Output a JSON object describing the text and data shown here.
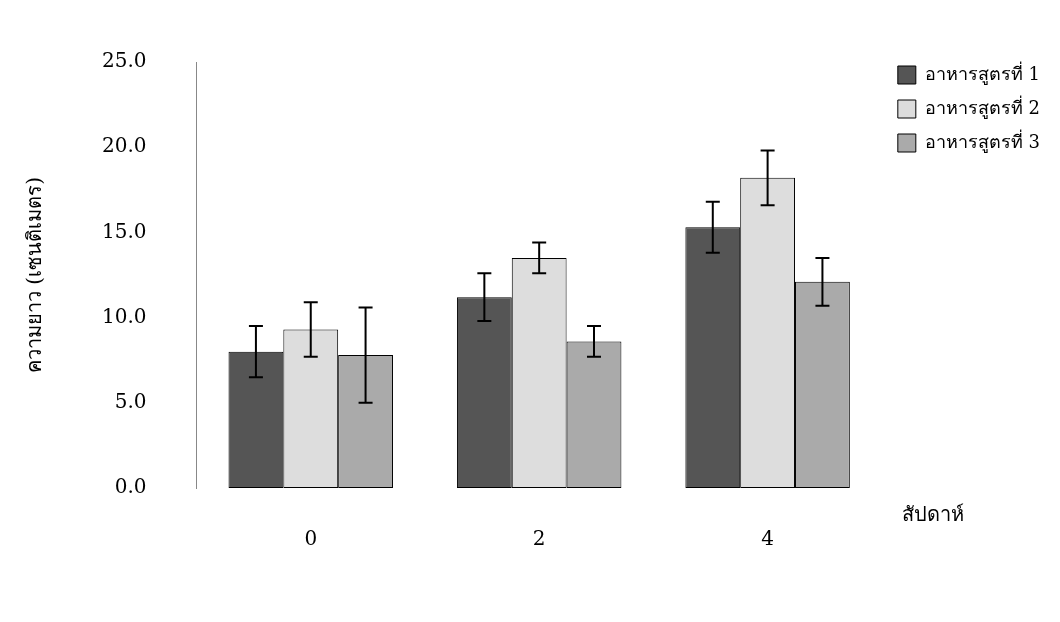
{
  "chart_data": {
    "type": "bar",
    "xlabel": "สัปดาห์",
    "ylabel": "ความยาว (เซนติเมตร)",
    "categories": [
      "0",
      "2",
      "4"
    ],
    "series": [
      {
        "name": "อาหารสูตรที่ 1",
        "color": "#555555",
        "values": [
          8.0,
          11.2,
          15.3
        ],
        "errors": [
          1.5,
          1.4,
          1.5
        ]
      },
      {
        "name": "อาหารสูตรที่ 2",
        "color": "#dddddd",
        "values": [
          9.3,
          13.5,
          18.2
        ],
        "errors": [
          1.6,
          0.9,
          1.6
        ]
      },
      {
        "name": "อาหารสูตรที่ 3",
        "color": "#aaaaaa",
        "values": [
          7.8,
          8.6,
          12.1
        ],
        "errors": [
          2.8,
          0.9,
          1.4
        ]
      }
    ],
    "ylim": [
      0,
      25
    ],
    "yticks": [
      {
        "value": 0,
        "label": "0.0"
      },
      {
        "value": 5,
        "label": "5.0"
      },
      {
        "value": 10,
        "label": "10.0"
      },
      {
        "value": 15,
        "label": "15.0"
      },
      {
        "value": 20,
        "label": "20.0"
      },
      {
        "value": 25,
        "label": "25.0"
      }
    ],
    "grid": false,
    "legend": "top right"
  }
}
